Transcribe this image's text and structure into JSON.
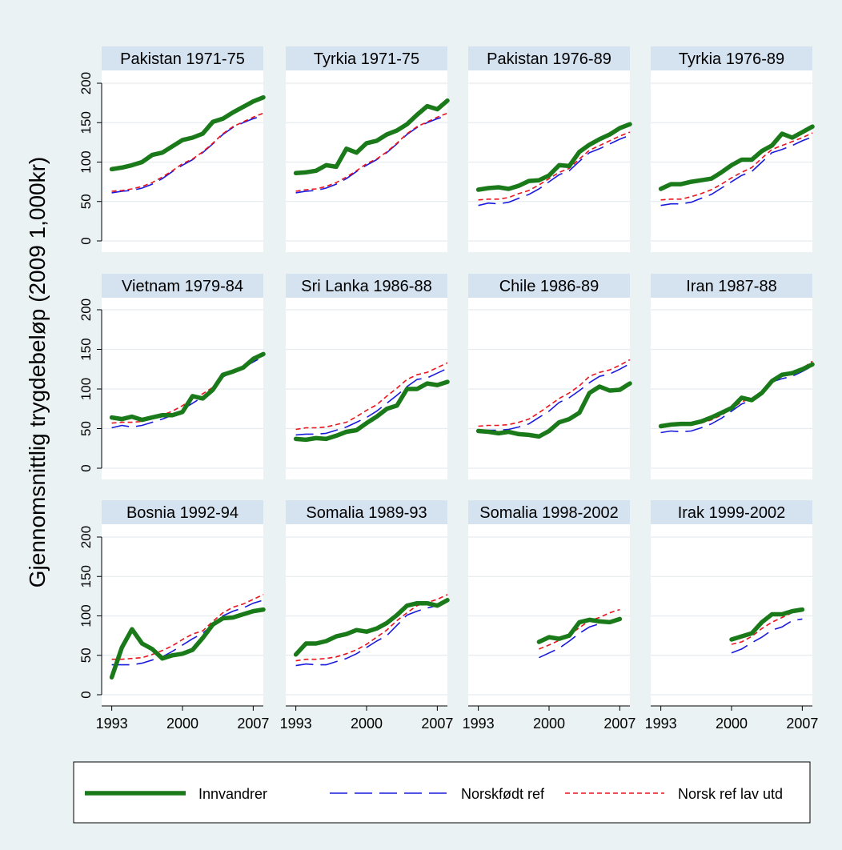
{
  "chart_data": {
    "type": "line",
    "ylabel": "Gjennomsnittlig trygdebeløp (2009 1,000kr)",
    "xlabel": "",
    "ylim": [
      0,
      200
    ],
    "yticks": [
      "0",
      "50",
      "100",
      "150",
      "200"
    ],
    "xlim": [
      1992,
      2008
    ],
    "xticks": [
      "1993",
      "2000",
      "2007"
    ],
    "grid": true,
    "legend_position": "bottom",
    "series_styles": [
      {
        "name": "Innvandrer",
        "color": "#1a7a1a",
        "dash": "solid"
      },
      {
        "name": "Norskfødt ref",
        "color": "#1a1adc",
        "dash": "long-dash"
      },
      {
        "name": "Norsk ref lav utd",
        "color": "#e8141e",
        "dash": "short-dash"
      }
    ],
    "panels": [
      {
        "title": "Pakistan 1971-75",
        "x_start": 1993,
        "series": [
          {
            "name": "Innvandrer",
            "values": [
              91,
              93,
              96,
              100,
              109,
              112,
              120,
              128,
              131,
              136,
              151,
              155,
              163,
              170,
              177,
              182
            ]
          },
          {
            "name": "Norskfødt ref",
            "values": [
              61,
              63,
              64,
              67,
              72,
              79,
              88,
              96,
              103,
              112,
              123,
              135,
              144,
              150,
              155,
              159
            ]
          },
          {
            "name": "Norsk ref lav utd",
            "values": [
              63,
              64,
              66,
              69,
              74,
              81,
              89,
              98,
              104,
              113,
              124,
              136,
              145,
              151,
              157,
              162
            ]
          }
        ]
      },
      {
        "title": "Tyrkia 1971-75",
        "x_start": 1993,
        "series": [
          {
            "name": "Innvandrer",
            "values": [
              86,
              87,
              89,
              96,
              94,
              117,
              112,
              124,
              127,
              135,
              140,
              148,
              160,
              171,
              167,
              178
            ]
          },
          {
            "name": "Norskfødt ref",
            "values": [
              61,
              63,
              64,
              67,
              72,
              79,
              88,
              96,
              103,
              112,
              123,
              135,
              144,
              150,
              155,
              159
            ]
          },
          {
            "name": "Norsk ref lav utd",
            "values": [
              63,
              65,
              66,
              69,
              74,
              81,
              89,
              98,
              104,
              113,
              124,
              136,
              145,
              151,
              157,
              162
            ]
          }
        ]
      },
      {
        "title": "Pakistan 1976-89",
        "x_start": 1993,
        "series": [
          {
            "name": "Innvandrer",
            "values": [
              65,
              67,
              68,
              66,
              70,
              76,
              77,
              83,
              96,
              95,
              113,
              122,
              129,
              135,
              143,
              148
            ]
          },
          {
            "name": "Norskfødt ref",
            "values": [
              45,
              48,
              47,
              49,
              54,
              59,
              66,
              75,
              84,
              89,
              101,
              112,
              117,
              123,
              129,
              134
            ]
          },
          {
            "name": "Norsk ref lav utd",
            "values": [
              52,
              53,
              53,
              55,
              60,
              64,
              71,
              79,
              87,
              92,
              104,
              115,
              121,
              127,
              133,
              138
            ]
          }
        ]
      },
      {
        "title": "Tyrkia 1976-89",
        "x_start": 1993,
        "series": [
          {
            "name": "Innvandrer",
            "values": [
              66,
              72,
              72,
              75,
              77,
              79,
              87,
              96,
              103,
              103,
              114,
              121,
              136,
              131,
              138,
              145
            ]
          },
          {
            "name": "Norskfødt ref",
            "values": [
              45,
              47,
              47,
              49,
              54,
              59,
              67,
              75,
              83,
              88,
              100,
              112,
              116,
              121,
              127,
              132
            ]
          },
          {
            "name": "Norsk ref lav utd",
            "values": [
              52,
              53,
              53,
              56,
              60,
              65,
              72,
              80,
              87,
              93,
              105,
              116,
              121,
              126,
              131,
              137
            ]
          }
        ]
      },
      {
        "title": "Vietnam 1979-84",
        "x_start": 1993,
        "series": [
          {
            "name": "Innvandrer",
            "values": [
              64,
              62,
              65,
              61,
              64,
              67,
              67,
              71,
              91,
              88,
              99,
              118,
              122,
              127,
              138,
              144
            ]
          },
          {
            "name": "Norskfødt ref",
            "values": [
              51,
              54,
              52,
              54,
              58,
              62,
              67,
              74,
              82,
              90,
              98,
              115,
              122,
              127,
              134,
              141
            ]
          },
          {
            "name": "Norsk ref lav utd",
            "values": [
              57,
              58,
              58,
              59,
              63,
              67,
              72,
              79,
              87,
              94,
              102,
              117,
              123,
              128,
              136,
              144
            ]
          }
        ]
      },
      {
        "title": "Sri Lanka 1986-88",
        "x_start": 1993,
        "series": [
          {
            "name": "Innvandrer",
            "values": [
              37,
              36,
              38,
              37,
              41,
              46,
              48,
              57,
              65,
              75,
              79,
              100,
              100,
              107,
              105,
              109
            ]
          },
          {
            "name": "Norskfødt ref",
            "values": [
              42,
              43,
              43,
              44,
              48,
              52,
              58,
              64,
              72,
              82,
              92,
              103,
              112,
              114,
              120,
              126
            ]
          },
          {
            "name": "Norsk ref lav utd",
            "values": [
              49,
              51,
              51,
              52,
              55,
              58,
              65,
              73,
              80,
              91,
              101,
              112,
              118,
              121,
              127,
              133
            ]
          }
        ]
      },
      {
        "title": "Chile 1986-89",
        "x_start": 1993,
        "series": [
          {
            "name": "Innvandrer",
            "values": [
              47,
              46,
              44,
              46,
              43,
              42,
              40,
              47,
              58,
              62,
              70,
              95,
              103,
              98,
              99,
              107
            ]
          },
          {
            "name": "Norskfødt ref",
            "values": [
              48,
              48,
              48,
              49,
              52,
              56,
              64,
              72,
              83,
              89,
              98,
              108,
              116,
              119,
              125,
              132
            ]
          },
          {
            "name": "Norsk ref lav utd",
            "values": [
              53,
              54,
              54,
              55,
              58,
              62,
              70,
              79,
              88,
              95,
              104,
              116,
              121,
              124,
              130,
              137
            ]
          }
        ]
      },
      {
        "title": "Iran 1987-88",
        "x_start": 1993,
        "series": [
          {
            "name": "Innvandrer",
            "values": [
              53,
              55,
              56,
              56,
              59,
              64,
              70,
              76,
              89,
              86,
              95,
              110,
              118,
              120,
              125,
              131
            ]
          },
          {
            "name": "Norskfødt ref",
            "values": [
              45,
              47,
              46,
              47,
              51,
              56,
              63,
              72,
              81,
              86,
              95,
              109,
              113,
              116,
              122,
              129
            ]
          },
          {
            "name": "Norsk ref lav utd",
            "values": [
              52,
              54,
              54,
              55,
              57,
              61,
              67,
              75,
              84,
              88,
              97,
              111,
              116,
              119,
              126,
              135
            ]
          }
        ]
      },
      {
        "title": "Bosnia 1992-94",
        "x_start": 1993,
        "series": [
          {
            "name": "Innvandrer",
            "values": [
              22,
              60,
              83,
              65,
              58,
              46,
              50,
              52,
              57,
              72,
              89,
              97,
              98,
              102,
              106,
              108
            ]
          },
          {
            "name": "Norskfødt ref",
            "values": [
              38,
              38,
              38,
              40,
              44,
              48,
              55,
              63,
              71,
              78,
              89,
              100,
              106,
              110,
              116,
              120
            ]
          },
          {
            "name": "Norsk ref lav utd",
            "values": [
              45,
              45,
              46,
              47,
              51,
              56,
              62,
              70,
              77,
              81,
              93,
              104,
              111,
              115,
              121,
              127
            ]
          }
        ]
      },
      {
        "title": "Somalia 1989-93",
        "x_start": 1993,
        "series": [
          {
            "name": "Innvandrer",
            "values": [
              51,
              65,
              65,
              68,
              74,
              77,
              82,
              80,
              84,
              91,
              101,
              113,
              116,
              116,
              113,
              120
            ]
          },
          {
            "name": "Norskfødt ref",
            "values": [
              37,
              39,
              38,
              38,
              42,
              46,
              52,
              60,
              68,
              75,
              88,
              101,
              106,
              110,
              113,
              117
            ]
          },
          {
            "name": "Norsk ref lav utd",
            "values": [
              43,
              45,
              45,
              46,
              48,
              52,
              57,
              64,
              73,
              82,
              94,
              104,
              113,
              117,
              121,
              127
            ]
          }
        ]
      },
      {
        "title": "Somalia 1998-2002",
        "x_start": 1999,
        "series": [
          {
            "name": "Innvandrer",
            "values": [
              67,
              73,
              71,
              75,
              92,
              95,
              93,
              92,
              96
            ]
          },
          {
            "name": "Norskfødt ref",
            "values": [
              47,
              53,
              59,
              68,
              78,
              86,
              90,
              93,
              98
            ]
          },
          {
            "name": "Norsk ref lav utd",
            "values": [
              58,
              63,
              69,
              76,
              85,
              94,
              98,
              104,
              108
            ]
          }
        ]
      },
      {
        "title": "Irak 1999-2002",
        "x_start": 2000,
        "series": [
          {
            "name": "Innvandrer",
            "values": [
              70,
              74,
              78,
              92,
              102,
              102,
              106,
              108
            ]
          },
          {
            "name": "Norskfødt ref",
            "values": [
              53,
              58,
              66,
              73,
              82,
              86,
              94,
              96
            ]
          },
          {
            "name": "Norsk ref lav utd",
            "values": [
              64,
              67,
              74,
              84,
              92,
              98,
              104,
              108
            ]
          }
        ]
      }
    ]
  },
  "legend": {
    "items": [
      {
        "label": "Innvandrer"
      },
      {
        "label": "Norskfødt ref"
      },
      {
        "label": "Norsk ref lav utd"
      }
    ]
  }
}
